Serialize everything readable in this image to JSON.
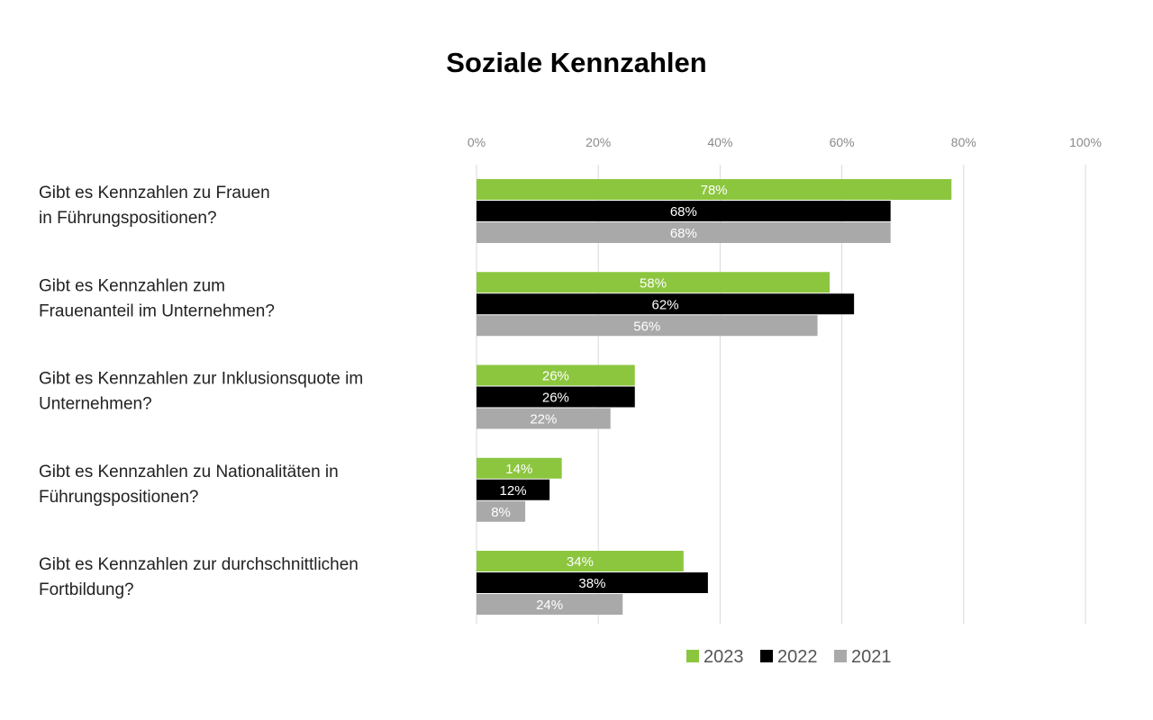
{
  "chart_data": {
    "type": "bar",
    "orientation": "horizontal",
    "title": "Soziale Kennzahlen",
    "xlim": [
      0,
      100
    ],
    "x_ticks": [
      0,
      20,
      40,
      60,
      80,
      100
    ],
    "x_tick_labels": [
      "0%",
      "20%",
      "40%",
      "60%",
      "80%",
      "100%"
    ],
    "x_axis_position": "top",
    "grid": true,
    "legend_position": "bottom-right",
    "categories": [
      [
        "Gibt es Kennzahlen zu Frauen",
        "in Führungspositionen?"
      ],
      [
        "Gibt es Kennzahlen zum",
        "Frauenanteil im Unternehmen?"
      ],
      [
        "Gibt es Kennzahlen zur Inklusionsquote im",
        "Unternehmen?"
      ],
      [
        "Gibt es Kennzahlen zu Nationalitäten in",
        "Führungspositionen?"
      ],
      [
        "Gibt es Kennzahlen zur durchschnittlichen",
        "Fortbildung?"
      ]
    ],
    "series": [
      {
        "name": "2023",
        "color": "#8cc63f",
        "values": [
          78,
          58,
          26,
          14,
          34
        ],
        "labels": [
          "78%",
          "58%",
          "26%",
          "14%",
          "34%"
        ]
      },
      {
        "name": "2022",
        "color": "#000000",
        "values": [
          68,
          62,
          26,
          12,
          38
        ],
        "labels": [
          "68%",
          "62%",
          "26%",
          "12%",
          "38%"
        ]
      },
      {
        "name": "2021",
        "color": "#a9a9a9",
        "values": [
          68,
          56,
          22,
          8,
          24
        ],
        "labels": [
          "68%",
          "56%",
          "22%",
          "8%",
          "24%"
        ]
      }
    ]
  }
}
